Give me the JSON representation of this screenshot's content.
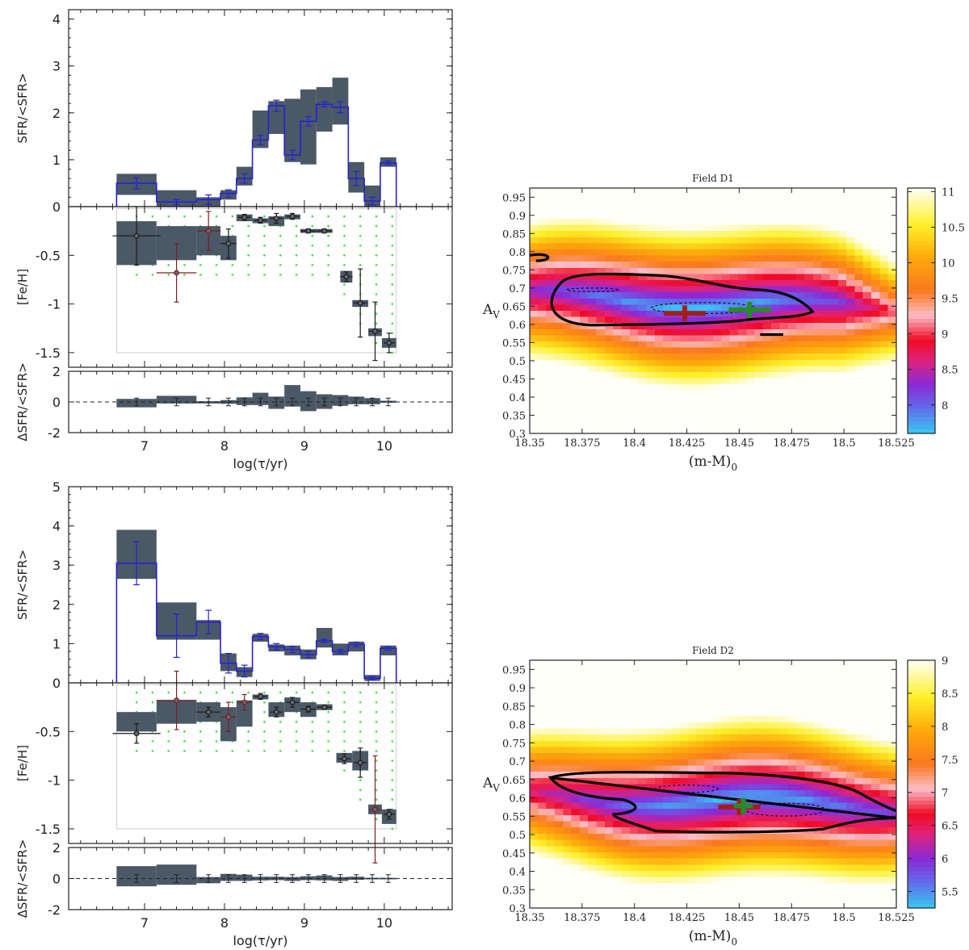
{
  "chart_data": [
    {
      "type": "step-bar",
      "panel": "sfh-top",
      "x_label": "log(τ/yr)",
      "x_ticks": [
        7,
        8,
        9,
        10
      ],
      "xlim": [
        6.05,
        10.85
      ],
      "sfr_panel": {
        "ylabel": "SFR/<SFR>",
        "ylim": [
          0,
          4.2
        ],
        "yticks": [
          1,
          2,
          3,
          4
        ],
        "bins": [
          {
            "x0": 6.65,
            "x1": 7.15,
            "lo": 0.25,
            "hi": 0.7,
            "v": 0.5,
            "err": 0.12
          },
          {
            "x0": 7.15,
            "x1": 7.65,
            "lo": 0.0,
            "hi": 0.35,
            "v": 0.1,
            "err": 0.05
          },
          {
            "x0": 7.65,
            "x1": 7.95,
            "lo": 0.0,
            "hi": 0.2,
            "v": 0.15,
            "err": 0.1
          },
          {
            "x0": 7.95,
            "x1": 8.15,
            "lo": 0.15,
            "hi": 0.35,
            "v": 0.28,
            "err": 0.08
          },
          {
            "x0": 8.15,
            "x1": 8.35,
            "lo": 0.45,
            "hi": 0.85,
            "v": 0.6,
            "err": 0.1
          },
          {
            "x0": 8.35,
            "x1": 8.55,
            "lo": 1.25,
            "hi": 2.05,
            "v": 1.42,
            "err": 0.1
          },
          {
            "x0": 8.55,
            "x1": 8.75,
            "lo": 1.55,
            "hi": 2.25,
            "v": 2.15,
            "err": 0.12
          },
          {
            "x0": 8.75,
            "x1": 8.95,
            "lo": 0.95,
            "hi": 2.3,
            "v": 1.1,
            "err": 0.1
          },
          {
            "x0": 8.95,
            "x1": 9.15,
            "lo": 0.9,
            "hi": 2.5,
            "v": 1.82,
            "err": 0.1
          },
          {
            "x0": 9.15,
            "x1": 9.35,
            "lo": 1.6,
            "hi": 2.55,
            "v": 2.18,
            "err": 0.05
          },
          {
            "x0": 9.35,
            "x1": 9.55,
            "lo": 1.75,
            "hi": 2.75,
            "v": 2.12,
            "err": 0.12
          },
          {
            "x0": 9.55,
            "x1": 9.75,
            "lo": 0.3,
            "hi": 0.95,
            "v": 0.6,
            "err": 0.15
          },
          {
            "x0": 9.75,
            "x1": 9.95,
            "lo": 0.0,
            "hi": 0.45,
            "v": 0.12,
            "err": 0.08
          },
          {
            "x0": 9.95,
            "x1": 10.15,
            "lo": 0.85,
            "hi": 1.05,
            "v": 0.93,
            "err": 0.04
          }
        ]
      },
      "feh_panel": {
        "ylabel": "[Fe/H]",
        "ylim": [
          -1.65,
          0
        ],
        "yticks": [
          0,
          -0.5,
          -1,
          -1.5
        ],
        "tick_labels": [
          "0",
          "-0.5",
          "-1",
          "-1.5"
        ],
        "bins": [
          {
            "x0": 6.65,
            "x1": 7.15,
            "lo": -0.6,
            "hi": -0.15,
            "v": -0.3,
            "xe": 0.3,
            "ye": 0.3,
            "c": "#1a1a1a"
          },
          {
            "x0": 7.15,
            "x1": 7.65,
            "lo": -0.55,
            "hi": -0.2,
            "v": -0.68,
            "xe": 0.25,
            "ye": 0.3,
            "c": "#7a1f1f"
          },
          {
            "x0": 7.65,
            "x1": 7.95,
            "lo": -0.5,
            "hi": -0.2,
            "v": -0.25,
            "xe": 0.15,
            "ye": 0.2,
            "c": "#7a1f1f"
          },
          {
            "x0": 7.95,
            "x1": 8.15,
            "lo": -0.55,
            "hi": -0.3,
            "v": -0.38,
            "xe": 0.1,
            "ye": 0.15,
            "c": "#1a1a1a"
          },
          {
            "x0": 8.15,
            "x1": 8.35,
            "lo": -0.15,
            "hi": -0.08,
            "v": -0.11,
            "xe": 0.08,
            "ye": 0.03,
            "c": "#1a1a1a"
          },
          {
            "x0": 8.35,
            "x1": 8.55,
            "lo": -0.17,
            "hi": -0.12,
            "v": -0.14,
            "xe": 0.08,
            "ye": 0.03,
            "c": "#1a1a1a"
          },
          {
            "x0": 8.55,
            "x1": 8.75,
            "lo": -0.2,
            "hi": -0.1,
            "v": -0.12,
            "xe": 0.08,
            "ye": 0.05,
            "c": "#1a1a1a"
          },
          {
            "x0": 8.75,
            "x1": 8.95,
            "lo": -0.13,
            "hi": -0.08,
            "v": -0.1,
            "xe": 0.08,
            "ye": 0.03,
            "c": "#1a1a1a"
          },
          {
            "x0": 8.95,
            "x1": 9.15,
            "lo": -0.27,
            "hi": -0.23,
            "v": -0.25,
            "xe": 0.1,
            "ye": 0.02,
            "c": "#1a1a1a"
          },
          {
            "x0": 9.15,
            "x1": 9.35,
            "lo": -0.27,
            "hi": -0.23,
            "v": -0.25,
            "xe": 0.1,
            "ye": 0.02,
            "c": "#1a1a1a"
          },
          {
            "x0": 9.45,
            "x1": 9.6,
            "lo": -0.78,
            "hi": -0.66,
            "v": -0.72,
            "xe": 0.08,
            "ye": 0.05,
            "c": "#1a1a1a"
          },
          {
            "x0": 9.6,
            "x1": 9.8,
            "lo": -1.03,
            "hi": -0.96,
            "v": -0.99,
            "xe": 0.08,
            "ye": 0.35,
            "c": "#1a1a1a"
          },
          {
            "x0": 9.8,
            "x1": 9.97,
            "lo": -1.33,
            "hi": -1.25,
            "v": -1.28,
            "xe": 0.08,
            "ye": 0.3,
            "c": "#1a1a1a"
          },
          {
            "x0": 9.97,
            "x1": 10.15,
            "lo": -1.45,
            "hi": -1.35,
            "v": -1.4,
            "xe": 0.07,
            "ye": 0.1,
            "c": "#1a1a1a"
          }
        ]
      },
      "dsfr_panel": {
        "ylabel": "ΔSFR/<SFR>",
        "ylim": [
          -2,
          2
        ],
        "yticks": [
          2,
          0,
          -2
        ],
        "bins": [
          [
            6.65,
            7.15,
            -0.35,
            0.2
          ],
          [
            7.15,
            7.65,
            -0.1,
            0.4
          ],
          [
            7.65,
            7.95,
            -0.1,
            0.05
          ],
          [
            7.95,
            8.15,
            -0.12,
            0.12
          ],
          [
            8.15,
            8.35,
            -0.2,
            0.3
          ],
          [
            8.35,
            8.55,
            -0.2,
            0.6
          ],
          [
            8.55,
            8.75,
            -0.45,
            0.35
          ],
          [
            8.75,
            8.95,
            -0.3,
            1.1
          ],
          [
            8.95,
            9.15,
            -0.6,
            0.7
          ],
          [
            9.15,
            9.35,
            -0.45,
            0.5
          ],
          [
            9.35,
            9.55,
            -0.25,
            0.45
          ],
          [
            9.55,
            9.75,
            -0.15,
            0.35
          ],
          [
            9.75,
            9.95,
            -0.15,
            0.25
          ],
          [
            9.95,
            10.15,
            -0.05,
            0.08
          ]
        ]
      }
    },
    {
      "type": "step-bar",
      "panel": "sfh-bottom",
      "x_label": "log(τ/yr)",
      "x_ticks": [
        7,
        8,
        9,
        10
      ],
      "xlim": [
        6.05,
        10.85
      ],
      "sfr_panel": {
        "ylabel": "SFR/<SFR>",
        "ylim": [
          0,
          5
        ],
        "yticks": [
          1,
          2,
          3,
          4,
          5
        ],
        "bins": [
          {
            "x0": 6.65,
            "x1": 7.15,
            "lo": 2.65,
            "hi": 3.9,
            "v": 3.05,
            "err": 0.55
          },
          {
            "x0": 7.15,
            "x1": 7.65,
            "lo": 1.1,
            "hi": 2.05,
            "v": 1.2,
            "err": 0.55
          },
          {
            "x0": 7.65,
            "x1": 7.95,
            "lo": 1.1,
            "hi": 1.6,
            "v": 1.55,
            "err": 0.3
          },
          {
            "x0": 7.95,
            "x1": 8.15,
            "lo": 0.3,
            "hi": 0.75,
            "v": 0.5,
            "err": 0.25
          },
          {
            "x0": 8.15,
            "x1": 8.35,
            "lo": 0.15,
            "hi": 0.4,
            "v": 0.3,
            "err": 0.15
          },
          {
            "x0": 8.35,
            "x1": 8.55,
            "lo": 1.05,
            "hi": 1.25,
            "v": 1.18,
            "err": 0.08
          },
          {
            "x0": 8.55,
            "x1": 8.75,
            "lo": 0.8,
            "hi": 0.98,
            "v": 0.92,
            "err": 0.08
          },
          {
            "x0": 8.75,
            "x1": 8.95,
            "lo": 0.7,
            "hi": 0.95,
            "v": 0.85,
            "err": 0.08
          },
          {
            "x0": 8.95,
            "x1": 9.15,
            "lo": 0.6,
            "hi": 0.85,
            "v": 0.72,
            "err": 0.08
          },
          {
            "x0": 9.15,
            "x1": 9.35,
            "lo": 0.9,
            "hi": 1.4,
            "v": 1.07,
            "err": 0.04
          },
          {
            "x0": 9.35,
            "x1": 9.55,
            "lo": 0.7,
            "hi": 1.0,
            "v": 0.8,
            "err": 0.05
          },
          {
            "x0": 9.55,
            "x1": 9.75,
            "lo": 0.8,
            "hi": 1.05,
            "v": 0.98,
            "err": 0.06
          },
          {
            "x0": 9.75,
            "x1": 9.95,
            "lo": 0.05,
            "hi": 0.2,
            "v": 0.12,
            "err": 0.04
          },
          {
            "x0": 9.95,
            "x1": 10.15,
            "lo": 0.7,
            "hi": 0.95,
            "v": 0.88,
            "err": 0.05
          }
        ]
      },
      "feh_panel": {
        "ylabel": "[Fe/H]",
        "ylim": [
          -1.65,
          0
        ],
        "yticks": [
          0,
          -0.5,
          -1,
          -1.5
        ],
        "tick_labels": [
          "0",
          "-0.5",
          "-1",
          "-1.5"
        ],
        "bins": [
          {
            "x0": 6.65,
            "x1": 7.15,
            "lo": -0.5,
            "hi": -0.3,
            "v": -0.52,
            "xe": 0.3,
            "ye": 0.1,
            "c": "#1a1a1a"
          },
          {
            "x0": 7.15,
            "x1": 7.65,
            "lo": -0.42,
            "hi": -0.18,
            "v": -0.18,
            "xe": 0.25,
            "ye": 0.3,
            "c": "#7a1f1f"
          },
          {
            "x0": 7.65,
            "x1": 7.95,
            "lo": -0.4,
            "hi": -0.2,
            "v": -0.3,
            "xe": 0.15,
            "ye": 0.05,
            "c": "#1a1a1a"
          },
          {
            "x0": 7.95,
            "x1": 8.15,
            "lo": -0.6,
            "hi": -0.25,
            "v": -0.35,
            "xe": 0.1,
            "ye": 0.15,
            "c": "#7a1f1f"
          },
          {
            "x0": 8.15,
            "x1": 8.35,
            "lo": -0.45,
            "hi": -0.18,
            "v": -0.2,
            "xe": 0.08,
            "ye": 0.08,
            "c": "#7a1f1f"
          },
          {
            "x0": 8.35,
            "x1": 8.55,
            "lo": -0.17,
            "hi": -0.12,
            "v": -0.14,
            "xe": 0.08,
            "ye": 0.03,
            "c": "#1a1a1a"
          },
          {
            "x0": 8.55,
            "x1": 8.75,
            "lo": -0.35,
            "hi": -0.2,
            "v": -0.3,
            "xe": 0.08,
            "ye": 0.05,
            "c": "#1a1a1a"
          },
          {
            "x0": 8.75,
            "x1": 8.95,
            "lo": -0.3,
            "hi": -0.15,
            "v": -0.2,
            "xe": 0.08,
            "ye": 0.05,
            "c": "#1a1a1a"
          },
          {
            "x0": 8.95,
            "x1": 9.15,
            "lo": -0.35,
            "hi": -0.2,
            "v": -0.27,
            "xe": 0.1,
            "ye": 0.03,
            "c": "#1a1a1a"
          },
          {
            "x0": 9.15,
            "x1": 9.35,
            "lo": -0.28,
            "hi": -0.22,
            "v": -0.25,
            "xe": 0.1,
            "ye": 0.02,
            "c": "#1a1a1a"
          },
          {
            "x0": 9.4,
            "x1": 9.6,
            "lo": -0.82,
            "hi": -0.72,
            "v": -0.78,
            "xe": 0.08,
            "ye": 0.05,
            "c": "#1a1a1a"
          },
          {
            "x0": 9.6,
            "x1": 9.8,
            "lo": -0.9,
            "hi": -0.7,
            "v": -0.82,
            "xe": 0.08,
            "ye": 0.15,
            "c": "#1a1a1a"
          },
          {
            "x0": 9.8,
            "x1": 9.97,
            "lo": -1.35,
            "hi": -1.25,
            "v": -1.3,
            "xe": 0.08,
            "ye": 0.55,
            "c": "#7a1f1f"
          },
          {
            "x0": 9.97,
            "x1": 10.15,
            "lo": -1.45,
            "hi": -1.3,
            "v": -1.35,
            "xe": 0.07,
            "ye": 0.05,
            "c": "#1a1a1a"
          }
        ]
      },
      "dsfr_panel": {
        "ylabel": "ΔSFR/<SFR>",
        "ylim": [
          -2,
          2
        ],
        "yticks": [
          2,
          0,
          -2
        ],
        "bins": [
          [
            6.65,
            7.15,
            -0.5,
            0.8
          ],
          [
            7.15,
            7.65,
            -0.4,
            0.9
          ],
          [
            7.65,
            7.95,
            -0.3,
            0.1
          ],
          [
            7.95,
            8.15,
            -0.15,
            0.3
          ],
          [
            8.15,
            8.35,
            -0.15,
            0.25
          ],
          [
            8.35,
            8.55,
            -0.12,
            0.12
          ],
          [
            8.55,
            8.75,
            -0.1,
            0.12
          ],
          [
            8.75,
            8.95,
            -0.15,
            0.1
          ],
          [
            8.95,
            9.15,
            -0.1,
            0.15
          ],
          [
            9.15,
            9.35,
            -0.12,
            0.2
          ],
          [
            9.35,
            9.55,
            -0.15,
            0.1
          ],
          [
            9.55,
            9.75,
            -0.08,
            0.12
          ],
          [
            9.75,
            9.95,
            -0.05,
            0.05
          ],
          [
            9.95,
            10.15,
            -0.05,
            0.05
          ]
        ]
      }
    },
    {
      "type": "heatmap",
      "panel": "field-d1",
      "title": "Field D1",
      "xlabel": "(m-M)",
      "xlabel_sub": "0",
      "ylabel": "A",
      "ylabel_sub": "V",
      "xlim": [
        18.35,
        18.525
      ],
      "ylim": [
        0.3,
        0.975
      ],
      "x_ticks": [
        "18.35",
        "18.375",
        "18.4",
        "18.425",
        "18.45",
        "18.475",
        "18.5",
        "18.525"
      ],
      "y_ticks": [
        "0.3",
        "0.35",
        "0.4",
        "0.45",
        "0.5",
        "0.55",
        "0.6",
        "0.65",
        "0.7",
        "0.75",
        "0.8",
        "0.85",
        "0.9",
        "0.95"
      ],
      "colorbar": {
        "min": 7.6,
        "max": 11.05,
        "ticks": [
          "8",
          "8.5",
          "9",
          "9.5",
          "10",
          "10.5",
          "11"
        ],
        "tick_values": [
          8,
          8.5,
          9,
          9.5,
          10,
          10.5,
          11
        ]
      },
      "valley": {
        "y_center": 0.66,
        "tilt": -0.28,
        "x_center": 18.43
      },
      "best_fit_red": {
        "x": 18.424,
        "y": 0.63
      },
      "best_fit_green": {
        "x": 18.455,
        "y": 0.64
      }
    },
    {
      "type": "heatmap",
      "panel": "field-d2",
      "title": "Field D2",
      "xlabel": "(m-M)",
      "xlabel_sub": "0",
      "ylabel": "A",
      "ylabel_sub": "V",
      "xlim": [
        18.35,
        18.525
      ],
      "ylim": [
        0.3,
        0.975
      ],
      "x_ticks": [
        "18.35",
        "18.375",
        "18.4",
        "18.425",
        "18.45",
        "18.475",
        "18.5",
        "18.525"
      ],
      "y_ticks": [
        "0.3",
        "0.35",
        "0.4",
        "0.45",
        "0.5",
        "0.55",
        "0.6",
        "0.65",
        "0.7",
        "0.75",
        "0.8",
        "0.85",
        "0.9",
        "0.95"
      ],
      "colorbar": {
        "min": 5.25,
        "max": 9.0,
        "ticks": [
          "5.5",
          "6",
          "6.5",
          "7",
          "7.5",
          "8",
          "8.5",
          "9"
        ],
        "tick_values": [
          5.5,
          6,
          6.5,
          7,
          7.5,
          8,
          8.5,
          9
        ]
      },
      "valley": {
        "y_center": 0.59,
        "tilt": -0.2,
        "x_center": 18.45
      },
      "best_fit_red": {
        "x": 18.45,
        "y": 0.575
      },
      "best_fit_green": {
        "x": 18.452,
        "y": 0.578
      }
    }
  ]
}
